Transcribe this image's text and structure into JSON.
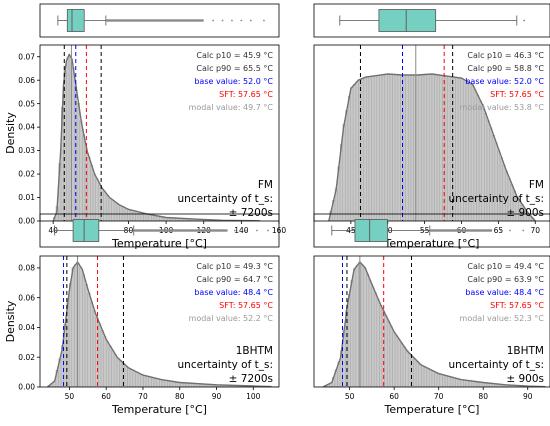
{
  "colors": {
    "box_fill": "#76d0c1",
    "hist_fill": "#c8c8c8",
    "hist_edge": "#9a9a9a",
    "kde_line": "#707070",
    "marker_black": "#000000",
    "marker_blue": "#0000ff",
    "marker_red": "#ff0000",
    "modal_grey": "#9a9a9a"
  },
  "chart_data": [
    {
      "type": "histogram",
      "xlabel": "Temperature [°C]",
      "ylabel": "Density",
      "xticks": [
        40,
        60,
        80,
        100,
        120,
        140,
        160
      ],
      "xlim": [
        33,
        160
      ],
      "yticks": [
        "0.00",
        "0.01",
        "0.02",
        "0.03",
        "0.04",
        "0.05",
        "0.06",
        "0.07"
      ],
      "ylim": [
        0,
        0.075
      ],
      "legend": [
        "Calc p10 = 45.9 °C",
        "Calc p90 = 65.5 °C",
        "base value: 52.0 °C",
        "SFT: 57.65 °C",
        "modal value: 49.7 °C"
      ],
      "annotation": [
        "FM",
        "uncertainty of t_s:",
        "± 7200s"
      ],
      "p10": 45.9,
      "p90": 65.5,
      "base": 52.0,
      "sft": 57.65,
      "modal": 49.7,
      "kde": [
        [
          40,
          0
        ],
        [
          42,
          0.004
        ],
        [
          44,
          0.03
        ],
        [
          45.5,
          0.058
        ],
        [
          47,
          0.068
        ],
        [
          48.5,
          0.071
        ],
        [
          50,
          0.069
        ],
        [
          52,
          0.058
        ],
        [
          55,
          0.042
        ],
        [
          58,
          0.03
        ],
        [
          62,
          0.02
        ],
        [
          66,
          0.014
        ],
        [
          70,
          0.01
        ],
        [
          75,
          0.007
        ],
        [
          80,
          0.005
        ],
        [
          90,
          0.003
        ],
        [
          100,
          0.0015
        ],
        [
          115,
          0.0008
        ],
        [
          130,
          0.0003
        ],
        [
          150,
          0.0001
        ]
      ],
      "box": {
        "whisker_low": 42.5,
        "q1": 47.5,
        "median": 50.0,
        "q3": 56.5,
        "whisker_high": 68.0,
        "outlier_range": [
          68.0,
          120.0
        ],
        "outliers_sparse": [
          125,
          130,
          135,
          140,
          145,
          152
        ]
      }
    },
    {
      "type": "histogram",
      "xlabel": "Temperature [°C]",
      "ylabel": "",
      "xticks": [
        45,
        50,
        55,
        60,
        65,
        70
      ],
      "xlim": [
        40,
        72
      ],
      "yticks": [],
      "ylim": [
        0,
        0.085
      ],
      "legend": [
        "Calc p10 = 46.3 °C",
        "Calc p90 = 58.8 °C",
        "base value: 52.0 °C",
        "SFT: 57.65 °C",
        "modal value: 53.8 °C"
      ],
      "annotation": [
        "FM",
        "uncertainty of t_s:",
        "± 900s"
      ],
      "p10": 46.3,
      "p90": 58.8,
      "base": 52.0,
      "sft": 57.65,
      "modal": 53.8,
      "kde": [
        [
          42,
          0.0
        ],
        [
          43,
          0.015
        ],
        [
          44,
          0.045
        ],
        [
          45,
          0.064
        ],
        [
          46,
          0.068
        ],
        [
          47,
          0.0695
        ],
        [
          48,
          0.07
        ],
        [
          50,
          0.071
        ],
        [
          52,
          0.0705
        ],
        [
          54,
          0.0705
        ],
        [
          56,
          0.071
        ],
        [
          58,
          0.07
        ],
        [
          60,
          0.069
        ],
        [
          61.5,
          0.066
        ],
        [
          63,
          0.055
        ],
        [
          64.5,
          0.04
        ],
        [
          66,
          0.025
        ],
        [
          67.5,
          0.012
        ],
        [
          69,
          0.004
        ],
        [
          70,
          0.0
        ]
      ],
      "box": {
        "whisker_low": 43.5,
        "q1": 48.8,
        "median": 52.5,
        "q3": 56.5,
        "whisker_high": 67.5,
        "outlier_range": [],
        "outliers_sparse": [
          68.5
        ]
      }
    },
    {
      "type": "histogram",
      "xlabel": "Temperature [°C]",
      "ylabel": "Density",
      "xticks": [
        50,
        60,
        70,
        80,
        90,
        100
      ],
      "xlim": [
        42,
        107
      ],
      "yticks": [
        "0.00",
        "0.02",
        "0.04",
        "0.06",
        "0.08"
      ],
      "ylim": [
        0,
        0.088
      ],
      "legend": [
        "Calc p10 = 49.3 °C",
        "Calc p90 = 64.7 °C",
        "base value: 48.4 °C",
        "SFT: 57.65 °C",
        "modal value: 52.2 °C"
      ],
      "annotation": [
        "1BHTM",
        "uncertainty of t_s:",
        "± 7200s"
      ],
      "p10": 49.3,
      "p90": 64.7,
      "base": 48.4,
      "sft": 57.65,
      "modal": 52.2,
      "kde": [
        [
          44,
          0
        ],
        [
          46,
          0.004
        ],
        [
          48,
          0.025
        ],
        [
          50,
          0.065
        ],
        [
          51,
          0.08
        ],
        [
          52.2,
          0.084
        ],
        [
          53.5,
          0.079
        ],
        [
          55,
          0.066
        ],
        [
          57,
          0.05
        ],
        [
          60,
          0.032
        ],
        [
          63,
          0.02
        ],
        [
          66,
          0.013
        ],
        [
          70,
          0.008
        ],
        [
          75,
          0.005
        ],
        [
          80,
          0.003
        ],
        [
          90,
          0.0015
        ],
        [
          100,
          0.0007
        ],
        [
          105,
          0.0003
        ]
      ],
      "box": {
        "whisker_low": 46.0,
        "q1": 51.0,
        "median": 54.0,
        "q3": 58.0,
        "whisker_high": 67.5,
        "outlier_range": [
          67.5,
          93.0
        ],
        "outliers_sparse": [
          95,
          98,
          101,
          104
        ]
      }
    },
    {
      "type": "histogram",
      "xlabel": "Temperature [°C]",
      "ylabel": "",
      "xticks": [
        50,
        60,
        70,
        80,
        90
      ],
      "xlim": [
        42,
        95
      ],
      "yticks": [],
      "ylim": [
        0,
        0.088
      ],
      "legend": [
        "Calc p10 = 49.4 °C",
        "Calc p90 = 63.9 °C",
        "base value: 48.4 °C",
        "SFT: 57.65 °C",
        "modal value: 52.3 °C"
      ],
      "annotation": [
        "1BHTM",
        "uncertainty of t_s:",
        "± 900s"
      ],
      "p10": 49.4,
      "p90": 63.9,
      "base": 48.4,
      "sft": 57.65,
      "modal": 52.3,
      "kde": [
        [
          44,
          0
        ],
        [
          46,
          0.003
        ],
        [
          48,
          0.02
        ],
        [
          49.5,
          0.055
        ],
        [
          51,
          0.079
        ],
        [
          52.3,
          0.084
        ],
        [
          53.5,
          0.08
        ],
        [
          55,
          0.069
        ],
        [
          57,
          0.055
        ],
        [
          60,
          0.037
        ],
        [
          63,
          0.024
        ],
        [
          66,
          0.015
        ],
        [
          70,
          0.009
        ],
        [
          75,
          0.005
        ],
        [
          80,
          0.003
        ],
        [
          85,
          0.0015
        ],
        [
          90,
          0.0006
        ],
        [
          94,
          0.0002
        ]
      ],
      "box": {
        "whisker_low": 46.0,
        "q1": 51.2,
        "median": 54.5,
        "q3": 58.5,
        "whisker_high": 68.0,
        "outlier_range": [
          68.0,
          82.0
        ],
        "outliers_sparse": [
          84,
          86,
          89
        ]
      }
    }
  ]
}
